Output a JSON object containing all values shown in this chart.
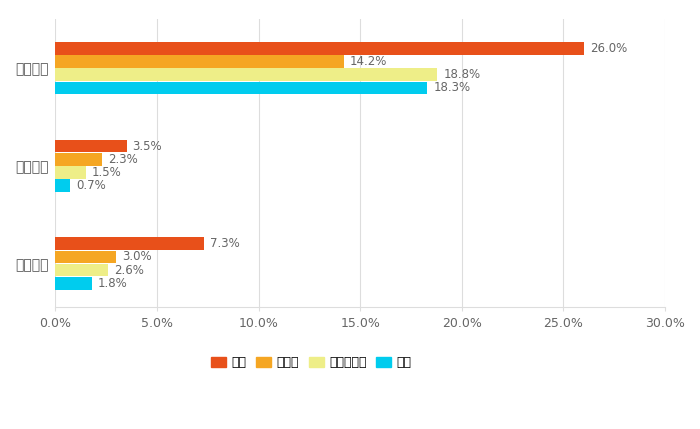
{
  "categories": [
    "同一地域",
    "隣接地域",
    "遠隔地域"
  ],
  "series": [
    {
      "name": "同業",
      "color": "#E8501A",
      "values": [
        26.0,
        3.5,
        7.3
      ]
    },
    {
      "name": "取引先",
      "color": "#F5A623",
      "values": [
        14.2,
        2.3,
        3.0
      ]
    },
    {
      "name": "取引先以外",
      "color": "#EEEE88",
      "values": [
        18.8,
        1.5,
        2.6
      ]
    },
    {
      "name": "不明",
      "color": "#00CCEE",
      "values": [
        18.3,
        0.7,
        1.8
      ]
    }
  ],
  "xlim": [
    0,
    30
  ],
  "xticks": [
    0,
    5,
    10,
    15,
    20,
    25,
    30
  ],
  "xtick_labels": [
    "0.0%",
    "5.0%",
    "10.0%",
    "15.0%",
    "20.0%",
    "25.0%",
    "30.0%"
  ],
  "bar_height": 0.13,
  "bar_gap": 0.005,
  "cat_centers": [
    2.0,
    1.0,
    0.0
  ],
  "background_color": "#ffffff",
  "grid_color": "#dddddd",
  "label_fontsize": 8.5,
  "tick_fontsize": 9,
  "ytick_fontsize": 10,
  "legend_fontsize": 9,
  "label_color": "#666666",
  "ytick_color": "#555555"
}
